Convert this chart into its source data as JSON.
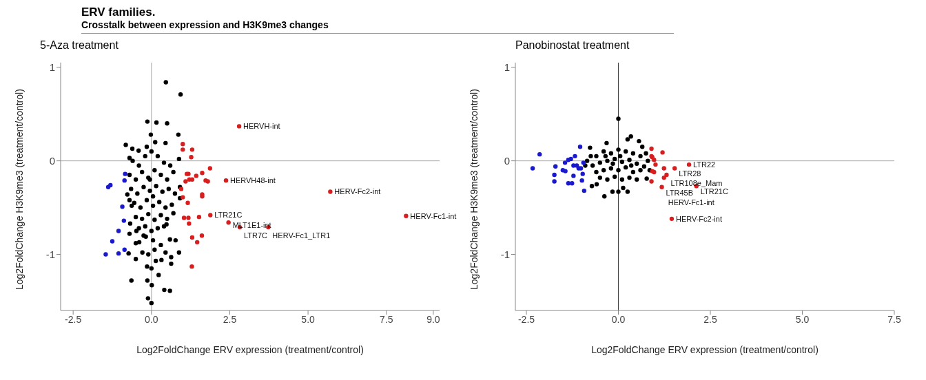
{
  "chart_data": [
    {
      "type": "scatter",
      "title": "5-Aza treatment",
      "xlabel": "Log2FoldChange ERV expression (treatment/control)",
      "ylabel": "Log2FoldChange H3K9me3 (treatment/control)",
      "marker": "circle",
      "annotations": [
        "ERV families.",
        "Crosstalk between expression and H3K9me3 changes",
        {
          "text": "HERVH-int",
          "x": 2.8,
          "y": 0.37
        },
        {
          "text": "HERVH48-int",
          "x": 2.38,
          "y": -0.21
        },
        {
          "text": "HERV-Fc2-int",
          "x": 5.71,
          "y": -0.33
        },
        {
          "text": "LTR21C",
          "x": 1.88,
          "y": -0.58
        },
        {
          "text": "MLT1E1-int",
          "x": 2.46,
          "y": -0.66
        },
        {
          "text": "LTR7C",
          "x": 2.82,
          "y": -0.71
        },
        {
          "text": "HERV-Fc1_LTR1",
          "x": 3.73,
          "y": -0.71
        },
        {
          "text": "HERV-Fc1-int",
          "x": 8.13,
          "y": -0.59
        }
      ],
      "xlim": [
        -2.9,
        9.2
      ],
      "ylim": [
        -1.6,
        1.05
      ],
      "xticks": [
        {
          "value": -2.5,
          "label": "-2.5"
        },
        {
          "value": 0,
          "label": "0.0"
        },
        {
          "value": 2.5,
          "label": "2.5"
        },
        {
          "value": 5,
          "label": "5.0"
        },
        {
          "value": 7.5,
          "label": "7.5"
        },
        {
          "value": 9,
          "label": "9.0"
        }
      ],
      "yticks": [
        -1,
        0,
        1
      ],
      "ref_lines": [
        {
          "axis": "y",
          "value": 0,
          "color": "#a6a6a6"
        },
        {
          "axis": "x",
          "value": 0,
          "color": "#a6a6a6"
        }
      ],
      "series": [
        {
          "color": "#000000",
          "x": [
            0.46,
            0.93,
            -0.13,
            0.16,
            0.5,
            0.86,
            -0.02,
            -0.82,
            -0.61,
            -0.41,
            0.45,
            0.88,
            -0.7,
            0.91,
            0.91,
            -0.77,
            -0.7,
            -0.63,
            -0.68,
            -0.7,
            -0.48,
            -0.5,
            -0.73,
            -0.5,
            -0.64,
            -0.29,
            -0.13,
            -0.11,
            0,
            0.01,
            0.41,
            0.59,
            0.23,
            -0.14,
            0.14,
            0.32,
            0.63,
            0.88,
            0.45,
            0.63,
            0.59,
            0.77,
            0.7,
            0.48,
            0.05,
            -0.18,
            -0.39,
            -0.6,
            -0.4,
            -0.2,
            0,
            0.2,
            0.4,
            0.6,
            -0.7,
            -0.5,
            -0.3,
            -0.1,
            0.1,
            0.3,
            0.5,
            0.7,
            -0.65,
            -0.45,
            -0.25,
            -0.05,
            0.15,
            0.35,
            0.55,
            0.75,
            -0.55,
            -0.35,
            -0.15,
            0.05,
            0.25,
            0.45,
            0.65,
            -0.5,
            -0.3,
            -0.1,
            0.1,
            0.3,
            0.5,
            -0.4,
            -0.2,
            0,
            0.2,
            0.4,
            -0.05,
            0.05,
            -0.15,
            0.12,
            -0.25,
            0.3,
            0.1,
            -0.1,
            0
          ],
          "values": [
            0.84,
            0.71,
            0.42,
            0.41,
            0.4,
            0.28,
            0.28,
            0.17,
            0.13,
            0.11,
            0.19,
            0.02,
            0.03,
            -0.28,
            -0.4,
            -0.36,
            -0.42,
            -0.48,
            -0.67,
            -0.78,
            -0.75,
            -0.88,
            -0.99,
            -1.05,
            -1.28,
            -0.98,
            -1.28,
            -1.47,
            -1.52,
            -1.33,
            -1.38,
            -1.39,
            -1.22,
            -1.13,
            -1.07,
            -1.06,
            -1.1,
            -0.98,
            -0.98,
            -1.03,
            -0.84,
            -0.85,
            -0.56,
            -0.68,
            -0.85,
            -0.81,
            -0.87,
            0,
            -0.05,
            0.05,
            0.1,
            0.05,
            -0.02,
            -0.05,
            -0.15,
            -0.2,
            -0.12,
            -0.18,
            -0.1,
            -0.15,
            -0.2,
            -0.12,
            -0.3,
            -0.35,
            -0.28,
            -0.32,
            -0.27,
            -0.33,
            -0.3,
            -0.35,
            -0.45,
            -0.5,
            -0.42,
            -0.48,
            -0.44,
            -0.5,
            -0.47,
            -0.6,
            -0.62,
            -0.57,
            -0.63,
            -0.58,
            -0.62,
            -0.72,
            -0.7,
            -0.75,
            -0.72,
            -0.7,
            -0.2,
            -0.38,
            0.15,
            0.2,
            -0.8,
            -0.9,
            -0.95,
            -1,
            -1.15
          ]
        },
        {
          "color": "#d81e1e",
          "x": [
            1,
            1,
            1.3,
            1.27,
            1.87,
            1.13,
            1.18,
            1.62,
            1.43,
            1.21,
            1.3,
            1.09,
            1.73,
            1.8,
            0.95,
            1,
            1.62,
            1.62,
            1.16,
            1.88,
            1.04,
            1.18,
            1.52,
            1.2,
            1.3,
            1.46,
            1.61,
            1.29,
            2.38,
            2.8,
            5.71,
            2.46,
            2.82,
            3.73,
            8.13
          ],
          "values": [
            0.18,
            0.12,
            0.12,
            0.04,
            -0.08,
            -0.14,
            -0.14,
            -0.13,
            -0.16,
            -0.2,
            -0.2,
            -0.22,
            -0.21,
            -0.22,
            -0.3,
            -0.39,
            -0.36,
            -0.38,
            -0.45,
            -0.58,
            -0.61,
            -0.61,
            -0.6,
            -0.67,
            -0.82,
            -0.87,
            -0.8,
            -1.13,
            -0.21,
            0.37,
            -0.33,
            -0.66,
            -0.71,
            -0.71,
            -0.59
          ]
        },
        {
          "color": "#1a1acc",
          "x": [
            -1.38,
            -1.31,
            -0.84,
            -0.86,
            -0.93,
            -0.88,
            -1.05,
            -1.25,
            -1.46,
            -1.05,
            -0.86
          ],
          "values": [
            -0.28,
            -0.26,
            -0.14,
            -0.21,
            -0.49,
            -0.64,
            -0.75,
            -0.86,
            -1,
            -0.99,
            -0.95
          ]
        }
      ]
    },
    {
      "type": "scatter",
      "title": "Panobinostat treatment",
      "xlabel": "Log2FoldChange ERV expression (treatment/control)",
      "ylabel": "Log2FoldChange H3K9me3 (treatment/control)",
      "marker": "circle",
      "annotations": [
        {
          "text": "LTR22",
          "x": 1.92,
          "y": -0.04
        },
        {
          "text": "LTR28",
          "x": 1.53,
          "y": -0.08
        },
        {
          "text": "LTR108e_Mam",
          "x": 1.31,
          "y": -0.15
        },
        {
          "text": "LTR45B",
          "x": 1.18,
          "y": -0.28
        },
        {
          "text": "LTR21C",
          "x": 2.12,
          "y": -0.27
        },
        {
          "text": "HERV-Fc1-int",
          "x": 1.24,
          "y": -0.18
        },
        {
          "text": "HERV-Fc2-int",
          "x": 1.45,
          "y": -0.62
        }
      ],
      "xlim": [
        -2.8,
        7.5
      ],
      "ylim": [
        -1.6,
        1.05
      ],
      "xticks": [
        {
          "value": -2.5,
          "label": "-2.5"
        },
        {
          "value": 0,
          "label": "0.0"
        },
        {
          "value": 2.5,
          "label": "2.5"
        },
        {
          "value": 5,
          "label": "5.0"
        },
        {
          "value": 7.5,
          "label": "7.5"
        }
      ],
      "yticks": [
        -1,
        0,
        1
      ],
      "ref_lines": [
        {
          "axis": "y",
          "value": 0,
          "color": "#a6a6a6"
        },
        {
          "axis": "x",
          "value": 0,
          "color": "#404040"
        }
      ],
      "series": [
        {
          "color": "#000000",
          "x": [
            0,
            0.34,
            0.25,
            0.56,
            -0.32,
            -0.77,
            -0.38,
            -0.16,
            0,
            0.25,
            0.13,
            -0.59,
            -0.72,
            0.77,
            0.65,
            -0.9,
            -0.85,
            -0.6,
            -0.4,
            -0.2,
            0,
            0.2,
            0.4,
            0.6,
            0.8,
            -0.7,
            -0.5,
            -0.3,
            -0.1,
            0.1,
            0.3,
            0.5,
            0.7,
            -0.6,
            -0.4,
            -0.2,
            0,
            0.2,
            0.4,
            0.6,
            -0.5,
            -0.3,
            -0.1,
            0.1,
            0.3,
            0.5,
            -0.15,
            0.05,
            -0.35,
            0.35,
            0.75,
            -0.75,
            0.85
          ],
          "values": [
            0.45,
            0.26,
            0.23,
            0.21,
            0.19,
            0.14,
            -0.38,
            -0.33,
            -0.33,
            -0.33,
            -0.29,
            -0.25,
            -0.27,
            -0.19,
            0.15,
            -0.05,
            0,
            0.05,
            0.1,
            0.08,
            0.12,
            0.1,
            0.08,
            0.05,
            0,
            -0.05,
            -0.02,
            0,
            0.02,
            -0.01,
            0.01,
            -0.03,
            -0.06,
            -0.12,
            -0.1,
            -0.08,
            -0.1,
            -0.07,
            -0.12,
            -0.1,
            -0.18,
            -0.2,
            -0.17,
            -0.2,
            -0.18,
            -0.2,
            -0.03,
            0.05,
            0.05,
            -0.05,
            0.08,
            0.05,
            -0.1
          ]
        },
        {
          "color": "#d81e1e",
          "x": [
            0.9,
            1.2,
            0.9,
            0.92,
            0.97,
            1.01,
            0.92,
            0.97,
            1.24,
            1.24,
            1.31,
            0.9,
            1.53,
            1.92,
            1.18,
            2.12,
            1.45
          ],
          "values": [
            0.13,
            0.09,
            0.05,
            0.04,
            0.01,
            -0.04,
            -0.11,
            -0.12,
            -0.08,
            -0.18,
            -0.15,
            -0.22,
            -0.08,
            -0.04,
            -0.28,
            -0.27,
            -0.62
          ]
        },
        {
          "color": "#1a1acc",
          "x": [
            -2.14,
            -2.33,
            -1.71,
            -1.74,
            -1.74,
            -1.51,
            -1.44,
            -1.45,
            -1.36,
            -1.29,
            -1.18,
            -1.22,
            -1.13,
            -1.08,
            -1.04,
            -1.02,
            -1.22,
            -1.36,
            -1.26,
            -0.97,
            -0.99,
            -0.93,
            -0.95
          ],
          "values": [
            0.07,
            -0.08,
            -0.06,
            -0.15,
            -0.22,
            -0.1,
            -0.11,
            -0.02,
            0.01,
            0.02,
            0.05,
            -0.05,
            -0.05,
            -0.08,
            0.15,
            -0.08,
            -0.16,
            -0.24,
            -0.24,
            -0.14,
            -0.21,
            -0.32,
            -0.02
          ]
        }
      ]
    }
  ]
}
